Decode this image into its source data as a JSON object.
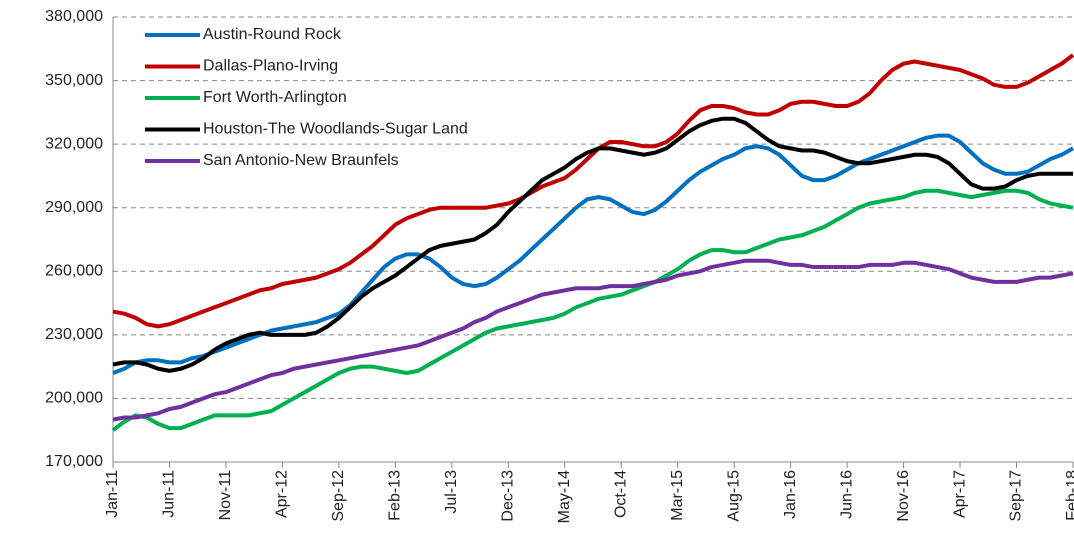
{
  "chart_data": {
    "type": "line",
    "categories": [
      "Jan-11",
      null,
      null,
      null,
      null,
      "Jun-11",
      null,
      null,
      null,
      null,
      "Nov-11",
      null,
      null,
      null,
      null,
      "Apr-12",
      null,
      null,
      null,
      null,
      "Sep-12",
      null,
      null,
      null,
      null,
      "Feb-13",
      null,
      null,
      null,
      null,
      "Jul-13",
      null,
      null,
      null,
      null,
      "Dec-13",
      null,
      null,
      null,
      null,
      "May-14",
      null,
      null,
      null,
      null,
      "Oct-14",
      null,
      null,
      null,
      null,
      "Mar-15",
      null,
      null,
      null,
      null,
      "Aug-15",
      null,
      null,
      null,
      null,
      "Jan-16",
      null,
      null,
      null,
      null,
      "Jun-16",
      null,
      null,
      null,
      null,
      "Nov-16",
      null,
      null,
      null,
      null,
      "Apr-17",
      null,
      null,
      null,
      null,
      "Sep-17",
      null,
      null,
      null,
      null,
      "Feb-18"
    ],
    "series": [
      {
        "name": "Austin-Round Rock",
        "color": "#0070c0",
        "values": [
          212000,
          214000,
          217000,
          218000,
          218000,
          217000,
          217000,
          219000,
          220000,
          222000,
          224000,
          226000,
          228000,
          230000,
          232000,
          233000,
          234000,
          235000,
          236000,
          238000,
          240000,
          244000,
          250000,
          256000,
          262000,
          266000,
          268000,
          268000,
          266000,
          262000,
          257000,
          254000,
          253000,
          254000,
          257000,
          261000,
          265000,
          270000,
          275000,
          280000,
          285000,
          290000,
          294000,
          295000,
          294000,
          291000,
          288000,
          287000,
          289000,
          293000,
          298000,
          303000,
          307000,
          310000,
          313000,
          315000,
          318000,
          319000,
          318000,
          315000,
          310000,
          305000,
          303000,
          303000,
          305000,
          308000,
          311000,
          313000,
          315000,
          317000,
          319000,
          321000,
          323000,
          324000,
          324000,
          321000,
          316000,
          311000,
          308000,
          306000,
          306000,
          307000,
          310000,
          313000,
          315000,
          318000
        ]
      },
      {
        "name": "Dallas-Plano-Irving",
        "color": "#c00000",
        "values": [
          241000,
          240000,
          238000,
          235000,
          234000,
          235000,
          237000,
          239000,
          241000,
          243000,
          245000,
          247000,
          249000,
          251000,
          252000,
          254000,
          255000,
          256000,
          257000,
          259000,
          261000,
          264000,
          268000,
          272000,
          277000,
          282000,
          285000,
          287000,
          289000,
          290000,
          290000,
          290000,
          290000,
          290000,
          291000,
          292000,
          294000,
          297000,
          300000,
          302000,
          304000,
          308000,
          313000,
          318000,
          321000,
          321000,
          320000,
          319000,
          319000,
          321000,
          325000,
          331000,
          336000,
          338000,
          338000,
          337000,
          335000,
          334000,
          334000,
          336000,
          339000,
          340000,
          340000,
          339000,
          338000,
          338000,
          340000,
          344000,
          350000,
          355000,
          358000,
          359000,
          358000,
          357000,
          356000,
          355000,
          353000,
          351000,
          348000,
          347000,
          347000,
          349000,
          352000,
          355000,
          358000,
          362000
        ]
      },
      {
        "name": "Fort Worth-Arlington",
        "color": "#00b050",
        "values": [
          185000,
          189000,
          192000,
          191000,
          188000,
          186000,
          186000,
          188000,
          190000,
          192000,
          192000,
          192000,
          192000,
          193000,
          194000,
          197000,
          200000,
          203000,
          206000,
          209000,
          212000,
          214000,
          215000,
          215000,
          214000,
          213000,
          212000,
          213000,
          216000,
          219000,
          222000,
          225000,
          228000,
          231000,
          233000,
          234000,
          235000,
          236000,
          237000,
          238000,
          240000,
          243000,
          245000,
          247000,
          248000,
          249000,
          251000,
          253000,
          255000,
          258000,
          261000,
          265000,
          268000,
          270000,
          270000,
          269000,
          269000,
          271000,
          273000,
          275000,
          276000,
          277000,
          279000,
          281000,
          284000,
          287000,
          290000,
          292000,
          293000,
          294000,
          295000,
          297000,
          298000,
          298000,
          297000,
          296000,
          295000,
          296000,
          297000,
          298000,
          298000,
          297000,
          294000,
          292000,
          291000,
          290000
        ]
      },
      {
        "name": "Houston-The Woodlands-Sugar Land",
        "color": "#000000",
        "values": [
          216000,
          217000,
          217000,
          216000,
          214000,
          213000,
          214000,
          216000,
          219000,
          223000,
          226000,
          228000,
          230000,
          231000,
          230000,
          230000,
          230000,
          230000,
          231000,
          234000,
          238000,
          243000,
          248000,
          252000,
          255000,
          258000,
          262000,
          266000,
          270000,
          272000,
          273000,
          274000,
          275000,
          278000,
          282000,
          288000,
          293000,
          298000,
          303000,
          306000,
          309000,
          313000,
          316000,
          318000,
          318000,
          317000,
          316000,
          315000,
          316000,
          318000,
          322000,
          326000,
          329000,
          331000,
          332000,
          332000,
          330000,
          326000,
          322000,
          319000,
          318000,
          317000,
          317000,
          316000,
          314000,
          312000,
          311000,
          311000,
          312000,
          313000,
          314000,
          315000,
          315000,
          314000,
          311000,
          306000,
          301000,
          299000,
          299000,
          300000,
          303000,
          305000,
          306000,
          306000,
          306000,
          306000
        ]
      },
      {
        "name": "San Antonio-New Braunfels",
        "color": "#7030a0",
        "values": [
          190000,
          191000,
          191000,
          192000,
          193000,
          195000,
          196000,
          198000,
          200000,
          202000,
          203000,
          205000,
          207000,
          209000,
          211000,
          212000,
          214000,
          215000,
          216000,
          217000,
          218000,
          219000,
          220000,
          221000,
          222000,
          223000,
          224000,
          225000,
          227000,
          229000,
          231000,
          233000,
          236000,
          238000,
          241000,
          243000,
          245000,
          247000,
          249000,
          250000,
          251000,
          252000,
          252000,
          252000,
          253000,
          253000,
          253000,
          254000,
          255000,
          256000,
          258000,
          259000,
          260000,
          262000,
          263000,
          264000,
          265000,
          265000,
          265000,
          264000,
          263000,
          263000,
          262000,
          262000,
          262000,
          262000,
          262000,
          263000,
          263000,
          263000,
          264000,
          264000,
          263000,
          262000,
          261000,
          259000,
          257000,
          256000,
          255000,
          255000,
          255000,
          256000,
          257000,
          257000,
          258000,
          259000
        ]
      }
    ],
    "ylim": [
      170000,
      380000
    ],
    "yticks": [
      {
        "value": 170000,
        "label": "170,000"
      },
      {
        "value": 200000,
        "label": "200,000"
      },
      {
        "value": 230000,
        "label": "230,000"
      },
      {
        "value": 260000,
        "label": "260,000"
      },
      {
        "value": 290000,
        "label": "290,000"
      },
      {
        "value": 320000,
        "label": "320,000"
      },
      {
        "value": 350000,
        "label": "350,000"
      },
      {
        "value": 380000,
        "label": "380,000"
      }
    ],
    "grid": true,
    "legend": "top-left"
  }
}
